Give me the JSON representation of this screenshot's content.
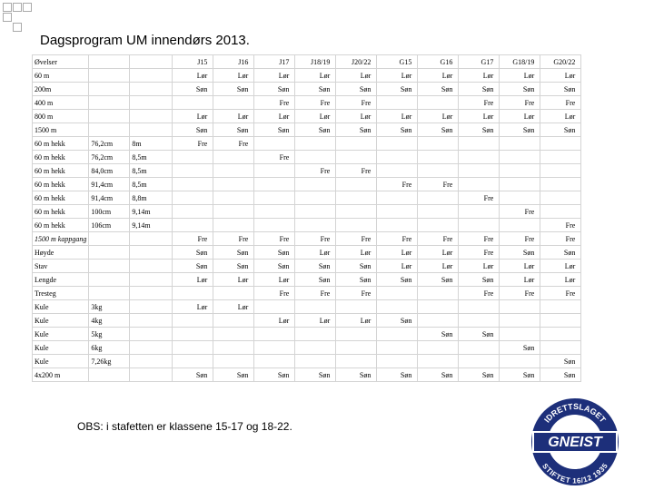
{
  "header": {
    "title": "Dagsprogram UM innendørs 2013."
  },
  "table": {
    "rows": [
      [
        "Øvelser",
        null,
        null,
        "J15",
        "J16",
        "J17",
        "J18/19",
        "J20/22",
        "G15",
        "G16",
        "G17",
        "G18/19",
        "G20/22"
      ],
      [
        "60 m",
        null,
        null,
        "Lør",
        "Lør",
        "Lør",
        "Lør",
        "Lør",
        "Lør",
        "Lør",
        "Lør",
        "Lør",
        "Lør"
      ],
      [
        "200m",
        null,
        null,
        "Søn",
        "Søn",
        "Søn",
        "Søn",
        "Søn",
        "Søn",
        "Søn",
        "Søn",
        "Søn",
        "Søn"
      ],
      [
        "400 m",
        null,
        null,
        null,
        null,
        "Fre",
        "Fre",
        "Fre",
        null,
        null,
        "Fre",
        "Fre",
        "Fre"
      ],
      [
        "800 m",
        null,
        null,
        "Lør",
        "Lør",
        "Lør",
        "Lør",
        "Lør",
        "Lør",
        "Lør",
        "Lør",
        "Lør",
        "Lør"
      ],
      [
        "1500 m",
        null,
        null,
        "Søn",
        "Søn",
        "Søn",
        "Søn",
        "Søn",
        "Søn",
        "Søn",
        "Søn",
        "Søn",
        "Søn"
      ],
      [
        "60 m hekk",
        "76,2cm",
        "8m",
        "Fre",
        "Fre",
        null,
        null,
        null,
        null,
        null,
        null,
        null,
        null
      ],
      [
        "60 m hekk",
        "76,2cm",
        "8,5m",
        null,
        null,
        "Fre",
        null,
        null,
        null,
        null,
        null,
        null,
        null
      ],
      [
        "60 m hekk",
        "84,0cm",
        "8,5m",
        null,
        null,
        null,
        "Fre",
        "Fre",
        null,
        null,
        null,
        null,
        null
      ],
      [
        "60 m hekk",
        "91,4cm",
        "8,5m",
        null,
        null,
        null,
        null,
        null,
        "Fre",
        "Fre",
        null,
        null,
        null
      ],
      [
        "60 m hekk",
        "91,4cm",
        "8,8m",
        null,
        null,
        null,
        null,
        null,
        null,
        null,
        "Fre",
        null,
        null
      ],
      [
        "60 m hekk",
        "100cm",
        "9,14m",
        null,
        null,
        null,
        null,
        null,
        null,
        null,
        null,
        "Fre",
        null
      ],
      [
        "60 m hekk",
        "106cm",
        "9,14m",
        null,
        null,
        null,
        null,
        null,
        null,
        null,
        null,
        null,
        "Fre"
      ],
      [
        "1500 m kappgang",
        null,
        null,
        "Fre",
        "Fre",
        "Fre",
        "Fre",
        "Fre",
        "Fre",
        "Fre",
        "Fre",
        "Fre",
        "Fre"
      ],
      [
        "Høyde",
        null,
        null,
        "Søn",
        "Søn",
        "Søn",
        "Lør",
        "Lør",
        "Lør",
        "Lør",
        "Fre",
        "Søn",
        "Søn"
      ],
      [
        "Stav",
        null,
        null,
        "Søn",
        "Søn",
        "Søn",
        "Søn",
        "Søn",
        "Lør",
        "Lør",
        "Lør",
        "Lør",
        "Lør"
      ],
      [
        "Lengde",
        null,
        null,
        "Lør",
        "Lør",
        "Lør",
        "Søn",
        "Søn",
        "Søn",
        "Søn",
        "Søn",
        "Lør",
        "Lør"
      ],
      [
        "Tresteg",
        null,
        null,
        null,
        null,
        "Fre",
        "Fre",
        "Fre",
        null,
        null,
        "Fre",
        "Fre",
        "Fre"
      ],
      [
        "Kule",
        "3kg",
        null,
        "Lør",
        "Lør",
        null,
        null,
        null,
        null,
        null,
        null,
        null,
        null
      ],
      [
        "Kule",
        "4kg",
        null,
        null,
        null,
        "Lør",
        "Lør",
        "Lør",
        "Søn",
        null,
        null,
        null,
        null
      ],
      [
        "Kule",
        "5kg",
        null,
        null,
        null,
        null,
        null,
        null,
        null,
        "Søn",
        "Søn",
        null,
        null
      ],
      [
        "Kule",
        "6kg",
        null,
        null,
        null,
        null,
        null,
        null,
        null,
        null,
        null,
        "Søn",
        null
      ],
      [
        "Kule",
        "7,26kg",
        null,
        null,
        null,
        null,
        null,
        null,
        null,
        null,
        null,
        null,
        "Søn"
      ],
      [
        "4x200 m",
        null,
        null,
        "Søn",
        "Søn",
        "Søn",
        "Søn",
        "Søn",
        "Søn",
        "Søn",
        "Søn",
        "Søn",
        "Søn"
      ]
    ]
  },
  "footer": {
    "note": "OBS: i stafetten er klassene 15-17 og 18-22."
  },
  "logo": {
    "top": "IDRETTSLAGET",
    "name": "GNEIST",
    "bottom": "STIFTET 16/12 1935"
  }
}
